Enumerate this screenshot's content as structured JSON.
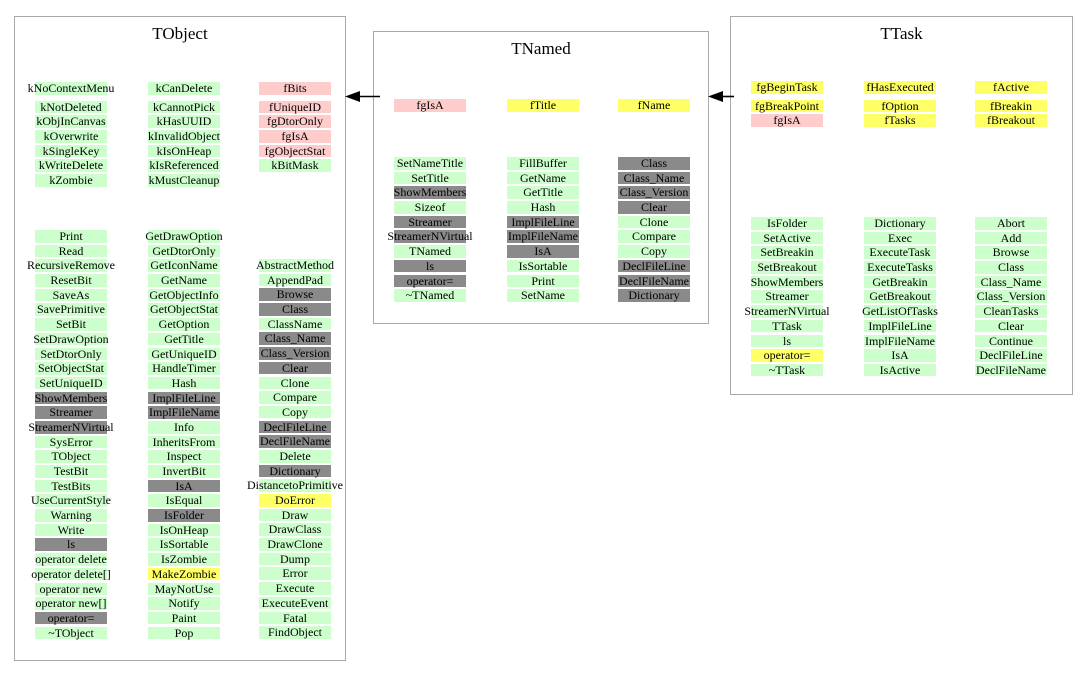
{
  "colors": {
    "green": "#ccffcc",
    "gray": "#8a8a8a",
    "yellow": "#ffff66",
    "pink": "#ffcccc"
  },
  "arrows": [
    {
      "name": "tnamed-inherits-tobject"
    },
    {
      "name": "ttask-inherits-tnamed"
    }
  ],
  "classes": [
    {
      "name": "TObject",
      "members": [
        [
          {
            "t": "kNoContextMenu",
            "c": "green"
          },
          {
            "t": "kNotDeleted",
            "c": "green"
          },
          {
            "t": "kObjInCanvas",
            "c": "green"
          },
          {
            "t": "kOverwrite",
            "c": "green"
          },
          {
            "t": "kSingleKey",
            "c": "green"
          },
          {
            "t": "kWriteDelete",
            "c": "green"
          },
          {
            "t": "kZombie",
            "c": "green"
          }
        ],
        [
          {
            "t": "kCanDelete",
            "c": "green"
          },
          {
            "t": "kCannotPick",
            "c": "green"
          },
          {
            "t": "kHasUUID",
            "c": "green"
          },
          {
            "t": "kInvalidObject",
            "c": "green"
          },
          {
            "t": "kIsOnHeap",
            "c": "green"
          },
          {
            "t": "kIsReferenced",
            "c": "green"
          },
          {
            "t": "kMustCleanup",
            "c": "green"
          }
        ],
        [
          {
            "t": "fBits",
            "c": "pink"
          },
          {
            "t": "fUniqueID",
            "c": "pink"
          },
          {
            "t": "fgDtorOnly",
            "c": "pink"
          },
          {
            "t": "fgIsA",
            "c": "pink"
          },
          {
            "t": "fgObjectStat",
            "c": "pink"
          },
          {
            "t": "kBitMask",
            "c": "green"
          }
        ]
      ],
      "methods": [
        [
          {
            "t": "Print",
            "c": "green"
          },
          {
            "t": "Read",
            "c": "green"
          },
          {
            "t": "RecursiveRemove",
            "c": "green"
          },
          {
            "t": "ResetBit",
            "c": "green"
          },
          {
            "t": "SaveAs",
            "c": "green"
          },
          {
            "t": "SavePrimitive",
            "c": "green"
          },
          {
            "t": "SetBit",
            "c": "green"
          },
          {
            "t": "SetDrawOption",
            "c": "green"
          },
          {
            "t": "SetDtorOnly",
            "c": "green"
          },
          {
            "t": "SetObjectStat",
            "c": "green"
          },
          {
            "t": "SetUniqueID",
            "c": "green"
          },
          {
            "t": "ShowMembers",
            "c": "gray"
          },
          {
            "t": "Streamer",
            "c": "gray"
          },
          {
            "t": "StreamerNVirtual",
            "c": "gray"
          },
          {
            "t": "SysError",
            "c": "green"
          },
          {
            "t": "TObject",
            "c": "green"
          },
          {
            "t": "TestBit",
            "c": "green"
          },
          {
            "t": "TestBits",
            "c": "green"
          },
          {
            "t": "UseCurrentStyle",
            "c": "green"
          },
          {
            "t": "Warning",
            "c": "green"
          },
          {
            "t": "Write",
            "c": "green"
          },
          {
            "t": "ls",
            "c": "gray"
          },
          {
            "t": "operator delete",
            "c": "green"
          },
          {
            "t": "operator delete[]",
            "c": "green"
          },
          {
            "t": "operator new",
            "c": "green"
          },
          {
            "t": "operator new[]",
            "c": "green"
          },
          {
            "t": "operator=",
            "c": "gray"
          },
          {
            "t": "~TObject",
            "c": "green"
          }
        ],
        [
          {
            "t": "GetDrawOption",
            "c": "green"
          },
          {
            "t": "GetDtorOnly",
            "c": "green"
          },
          {
            "t": "GetIconName",
            "c": "green"
          },
          {
            "t": "GetName",
            "c": "green"
          },
          {
            "t": "GetObjectInfo",
            "c": "green"
          },
          {
            "t": "GetObjectStat",
            "c": "green"
          },
          {
            "t": "GetOption",
            "c": "green"
          },
          {
            "t": "GetTitle",
            "c": "green"
          },
          {
            "t": "GetUniqueID",
            "c": "green"
          },
          {
            "t": "HandleTimer",
            "c": "green"
          },
          {
            "t": "Hash",
            "c": "green"
          },
          {
            "t": "ImplFileLine",
            "c": "gray"
          },
          {
            "t": "ImplFileName",
            "c": "gray"
          },
          {
            "t": "Info",
            "c": "green"
          },
          {
            "t": "InheritsFrom",
            "c": "green"
          },
          {
            "t": "Inspect",
            "c": "green"
          },
          {
            "t": "InvertBit",
            "c": "green"
          },
          {
            "t": "IsA",
            "c": "gray"
          },
          {
            "t": "IsEqual",
            "c": "green"
          },
          {
            "t": "IsFolder",
            "c": "gray"
          },
          {
            "t": "IsOnHeap",
            "c": "green"
          },
          {
            "t": "IsSortable",
            "c": "green"
          },
          {
            "t": "IsZombie",
            "c": "green"
          },
          {
            "t": "MakeZombie",
            "c": "yellow"
          },
          {
            "t": "MayNotUse",
            "c": "green"
          },
          {
            "t": "Notify",
            "c": "green"
          },
          {
            "t": "Paint",
            "c": "green"
          },
          {
            "t": "Pop",
            "c": "green"
          }
        ],
        [
          {
            "t": "AbstractMethod",
            "c": "green"
          },
          {
            "t": "AppendPad",
            "c": "green"
          },
          {
            "t": "Browse",
            "c": "gray"
          },
          {
            "t": "Class",
            "c": "gray"
          },
          {
            "t": "ClassName",
            "c": "green"
          },
          {
            "t": "Class_Name",
            "c": "gray"
          },
          {
            "t": "Class_Version",
            "c": "gray"
          },
          {
            "t": "Clear",
            "c": "gray"
          },
          {
            "t": "Clone",
            "c": "green"
          },
          {
            "t": "Compare",
            "c": "green"
          },
          {
            "t": "Copy",
            "c": "green"
          },
          {
            "t": "DeclFileLine",
            "c": "gray"
          },
          {
            "t": "DeclFileName",
            "c": "gray"
          },
          {
            "t": "Delete",
            "c": "green"
          },
          {
            "t": "Dictionary",
            "c": "gray"
          },
          {
            "t": "DistancetoPrimitive",
            "c": "green"
          },
          {
            "t": "DoError",
            "c": "yellow"
          },
          {
            "t": "Draw",
            "c": "green"
          },
          {
            "t": "DrawClass",
            "c": "green"
          },
          {
            "t": "DrawClone",
            "c": "green"
          },
          {
            "t": "Dump",
            "c": "green"
          },
          {
            "t": "Error",
            "c": "green"
          },
          {
            "t": "Execute",
            "c": "green"
          },
          {
            "t": "ExecuteEvent",
            "c": "green"
          },
          {
            "t": "Fatal",
            "c": "green"
          },
          {
            "t": "FindObject",
            "c": "green"
          }
        ]
      ]
    },
    {
      "name": "TNamed",
      "members": [
        [
          {
            "t": "fgIsA",
            "c": "pink"
          }
        ],
        [
          {
            "t": "fTitle",
            "c": "yellow"
          }
        ],
        [
          {
            "t": "fName",
            "c": "yellow"
          }
        ]
      ],
      "methods": [
        [
          {
            "t": "SetNameTitle",
            "c": "green"
          },
          {
            "t": "SetTitle",
            "c": "green"
          },
          {
            "t": "ShowMembers",
            "c": "gray"
          },
          {
            "t": "Sizeof",
            "c": "green"
          },
          {
            "t": "Streamer",
            "c": "gray"
          },
          {
            "t": "StreamerNVirtual",
            "c": "gray"
          },
          {
            "t": "TNamed",
            "c": "green"
          },
          {
            "t": "ls",
            "c": "gray"
          },
          {
            "t": "operator=",
            "c": "gray"
          },
          {
            "t": "~TNamed",
            "c": "green"
          }
        ],
        [
          {
            "t": "FillBuffer",
            "c": "green"
          },
          {
            "t": "GetName",
            "c": "green"
          },
          {
            "t": "GetTitle",
            "c": "green"
          },
          {
            "t": "Hash",
            "c": "green"
          },
          {
            "t": "ImplFileLine",
            "c": "gray"
          },
          {
            "t": "ImplFileName",
            "c": "gray"
          },
          {
            "t": "IsA",
            "c": "gray"
          },
          {
            "t": "IsSortable",
            "c": "green"
          },
          {
            "t": "Print",
            "c": "green"
          },
          {
            "t": "SetName",
            "c": "green"
          }
        ],
        [
          {
            "t": "Class",
            "c": "gray"
          },
          {
            "t": "Class_Name",
            "c": "gray"
          },
          {
            "t": "Class_Version",
            "c": "gray"
          },
          {
            "t": "Clear",
            "c": "gray"
          },
          {
            "t": "Clone",
            "c": "green"
          },
          {
            "t": "Compare",
            "c": "green"
          },
          {
            "t": "Copy",
            "c": "green"
          },
          {
            "t": "DeclFileLine",
            "c": "gray"
          },
          {
            "t": "DeclFileName",
            "c": "gray"
          },
          {
            "t": "Dictionary",
            "c": "gray"
          }
        ]
      ]
    },
    {
      "name": "TTask",
      "members": [
        [
          {
            "t": "fgBeginTask",
            "c": "yellow"
          },
          {
            "t": "fgBreakPoint",
            "c": "yellow"
          },
          {
            "t": "fgIsA",
            "c": "pink"
          }
        ],
        [
          {
            "t": "fHasExecuted",
            "c": "yellow"
          },
          {
            "t": "fOption",
            "c": "yellow"
          },
          {
            "t": "fTasks",
            "c": "yellow"
          }
        ],
        [
          {
            "t": "fActive",
            "c": "yellow"
          },
          {
            "t": "fBreakin",
            "c": "yellow"
          },
          {
            "t": "fBreakout",
            "c": "yellow"
          }
        ]
      ],
      "methods": [
        [
          {
            "t": "IsFolder",
            "c": "green"
          },
          {
            "t": "SetActive",
            "c": "green"
          },
          {
            "t": "SetBreakin",
            "c": "green"
          },
          {
            "t": "SetBreakout",
            "c": "green"
          },
          {
            "t": "ShowMembers",
            "c": "green"
          },
          {
            "t": "Streamer",
            "c": "green"
          },
          {
            "t": "StreamerNVirtual",
            "c": "green"
          },
          {
            "t": "TTask",
            "c": "green"
          },
          {
            "t": "ls",
            "c": "green"
          },
          {
            "t": "operator=",
            "c": "yellow"
          },
          {
            "t": "~TTask",
            "c": "green"
          }
        ],
        [
          {
            "t": "Dictionary",
            "c": "green"
          },
          {
            "t": "Exec",
            "c": "green"
          },
          {
            "t": "ExecuteTask",
            "c": "green"
          },
          {
            "t": "ExecuteTasks",
            "c": "green"
          },
          {
            "t": "GetBreakin",
            "c": "green"
          },
          {
            "t": "GetBreakout",
            "c": "green"
          },
          {
            "t": "GetListOfTasks",
            "c": "green"
          },
          {
            "t": "ImplFileLine",
            "c": "green"
          },
          {
            "t": "ImplFileName",
            "c": "green"
          },
          {
            "t": "IsA",
            "c": "green"
          },
          {
            "t": "IsActive",
            "c": "green"
          }
        ],
        [
          {
            "t": "Abort",
            "c": "green"
          },
          {
            "t": "Add",
            "c": "green"
          },
          {
            "t": "Browse",
            "c": "green"
          },
          {
            "t": "Class",
            "c": "green"
          },
          {
            "t": "Class_Name",
            "c": "green"
          },
          {
            "t": "Class_Version",
            "c": "green"
          },
          {
            "t": "CleanTasks",
            "c": "green"
          },
          {
            "t": "Clear",
            "c": "green"
          },
          {
            "t": "Continue",
            "c": "green"
          },
          {
            "t": "DeclFileLine",
            "c": "green"
          },
          {
            "t": "DeclFileName",
            "c": "green"
          }
        ]
      ]
    }
  ]
}
